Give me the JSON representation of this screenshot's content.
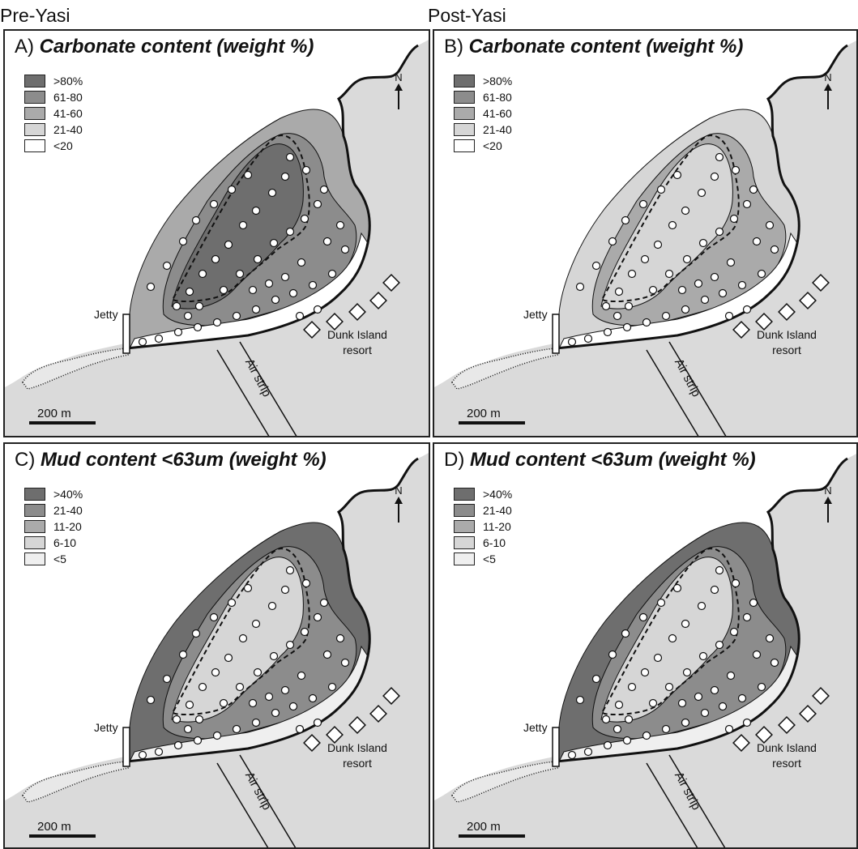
{
  "columns": {
    "left": "Pre-Yasi",
    "right": "Post-Yasi"
  },
  "panels": [
    {
      "letter": "A)",
      "name": "Carbonate content (weight %)",
      "legend": [
        ">80%",
        "61-80",
        "41-60",
        "21-40",
        "<20"
      ],
      "legend_colors": [
        "#6e6e6e",
        "#8c8c8c",
        "#aaaaaa",
        "#d6d6d6",
        "#ffffff"
      ]
    },
    {
      "letter": "B)",
      "name": "Carbonate content (weight %)",
      "legend": [
        ">80%",
        "61-80",
        "41-60",
        "21-40",
        "<20"
      ],
      "legend_colors": [
        "#6e6e6e",
        "#8c8c8c",
        "#aaaaaa",
        "#d6d6d6",
        "#ffffff"
      ]
    },
    {
      "letter": "C)",
      "name": "Mud content  <63um (weight %)",
      "legend": [
        ">40%",
        "21-40",
        "11-20",
        "6-10",
        "<5"
      ],
      "legend_colors": [
        "#6e6e6e",
        "#8c8c8c",
        "#aaaaaa",
        "#d6d6d6",
        "#efefef"
      ]
    },
    {
      "letter": "D)",
      "name": "Mud content  <63um (weight %)",
      "legend": [
        ">40%",
        "21-40",
        "11-20",
        "6-10",
        "<5"
      ],
      "legend_colors": [
        "#6e6e6e",
        "#8c8c8c",
        "#aaaaaa",
        "#d6d6d6",
        "#efefef"
      ]
    }
  ],
  "map_labels": {
    "north": "N",
    "jetty": "Jetty",
    "resort_line1": "Dunk Island",
    "resort_line2": "resort",
    "airstrip": "Air strip",
    "scale": "200 m"
  },
  "colors": {
    "land": "#dadada",
    "outline": "#111111"
  }
}
